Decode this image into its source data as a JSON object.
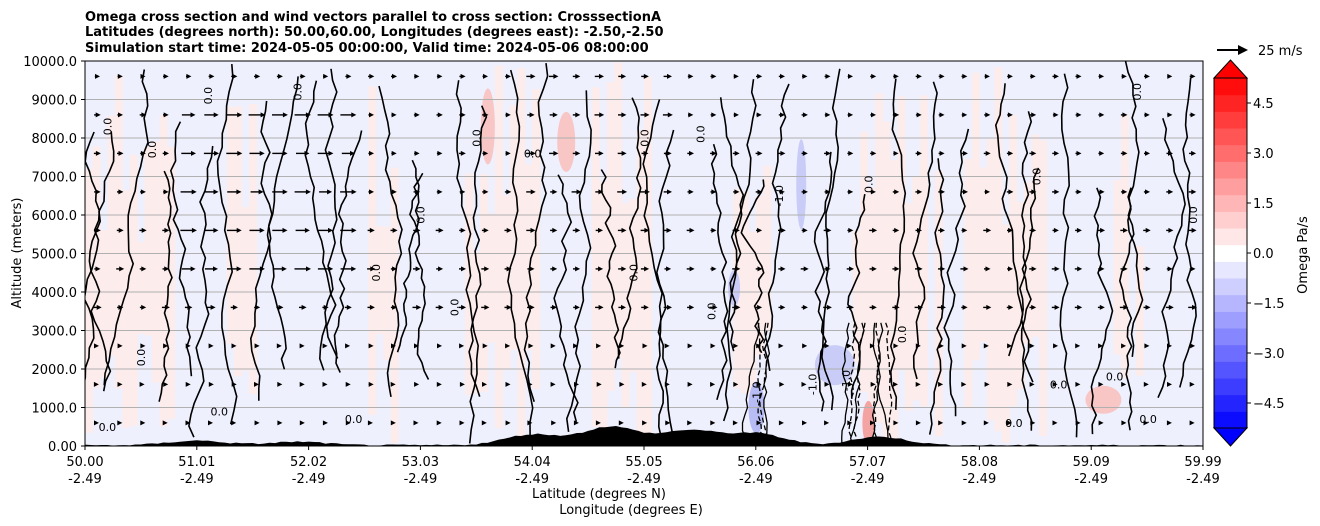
{
  "chart_data": {
    "type": "contour",
    "title_lines": [
      "Omega cross section and wind vectors parallel to cross section: CrosssectionA",
      "Latitudes (degrees north): 50.00,60.00, Longitudes (degrees east): -2.50,-2.50",
      "Simulation start time: 2024-05-05 00:00:00, Valid time: 2024-05-06 08:00:00"
    ],
    "ylabel": "Altitude (meters)",
    "xlabel_lines": [
      "Latitude (degrees N)",
      "Longitude (degrees E)"
    ],
    "ylim": [
      0,
      10000
    ],
    "y_ticks": [
      0,
      1000,
      2000,
      3000,
      4000,
      5000,
      6000,
      7000,
      8000,
      9000,
      10000
    ],
    "y_tick_labels": [
      "0.00",
      "1000.0",
      "2000.0",
      "3000.0",
      "4000.0",
      "5000.0",
      "6000.0",
      "7000.0",
      "8000.0",
      "9000.0",
      "10000.0"
    ],
    "x_ticks": [
      {
        "lat": "50.00",
        "lon": "-2.49"
      },
      {
        "lat": "51.01",
        "lon": "-2.49"
      },
      {
        "lat": "52.02",
        "lon": "-2.49"
      },
      {
        "lat": "53.03",
        "lon": "-2.49"
      },
      {
        "lat": "54.04",
        "lon": "-2.49"
      },
      {
        "lat": "55.05",
        "lon": "-2.49"
      },
      {
        "lat": "56.06",
        "lon": "-2.49"
      },
      {
        "lat": "57.07",
        "lon": "-2.49"
      },
      {
        "lat": "58.08",
        "lon": "-2.49"
      },
      {
        "lat": "59.09",
        "lon": "-2.49"
      },
      {
        "lat": "59.99",
        "lon": "-2.49"
      }
    ],
    "xlim": [
      50.0,
      59.99
    ],
    "colorbar": {
      "label": "Omega Pa/s",
      "range": [
        -5.25,
        5.25
      ],
      "tick_values": [
        -4.5,
        -3.0,
        -1.5,
        0.0,
        1.5,
        3.0,
        4.5
      ],
      "tick_labels": [
        "−4.5",
        "−3.0",
        "−1.5",
        "0.0",
        "1.5",
        "3.0",
        "4.5"
      ],
      "negative_color": "#0000ff",
      "positive_color": "#ff0000",
      "extend": "both"
    },
    "vector_key": {
      "label": "25 m/s",
      "speed": 25
    },
    "contour_label": "0.0",
    "contour_label_neg": "-1.0",
    "wind_vectors_rows_alt": [
      600,
      1600,
      2600,
      3600,
      4600,
      5600,
      6600,
      7600,
      8600,
      9600
    ],
    "terrain_peaks": [
      {
        "lat": 51.0,
        "alt": 120
      },
      {
        "lat": 51.9,
        "alt": 90
      },
      {
        "lat": 54.0,
        "alt": 280
      },
      {
        "lat": 54.7,
        "alt": 480
      },
      {
        "lat": 55.4,
        "alt": 380
      },
      {
        "lat": 56.0,
        "alt": 300
      },
      {
        "lat": 57.1,
        "alt": 220
      }
    ]
  }
}
